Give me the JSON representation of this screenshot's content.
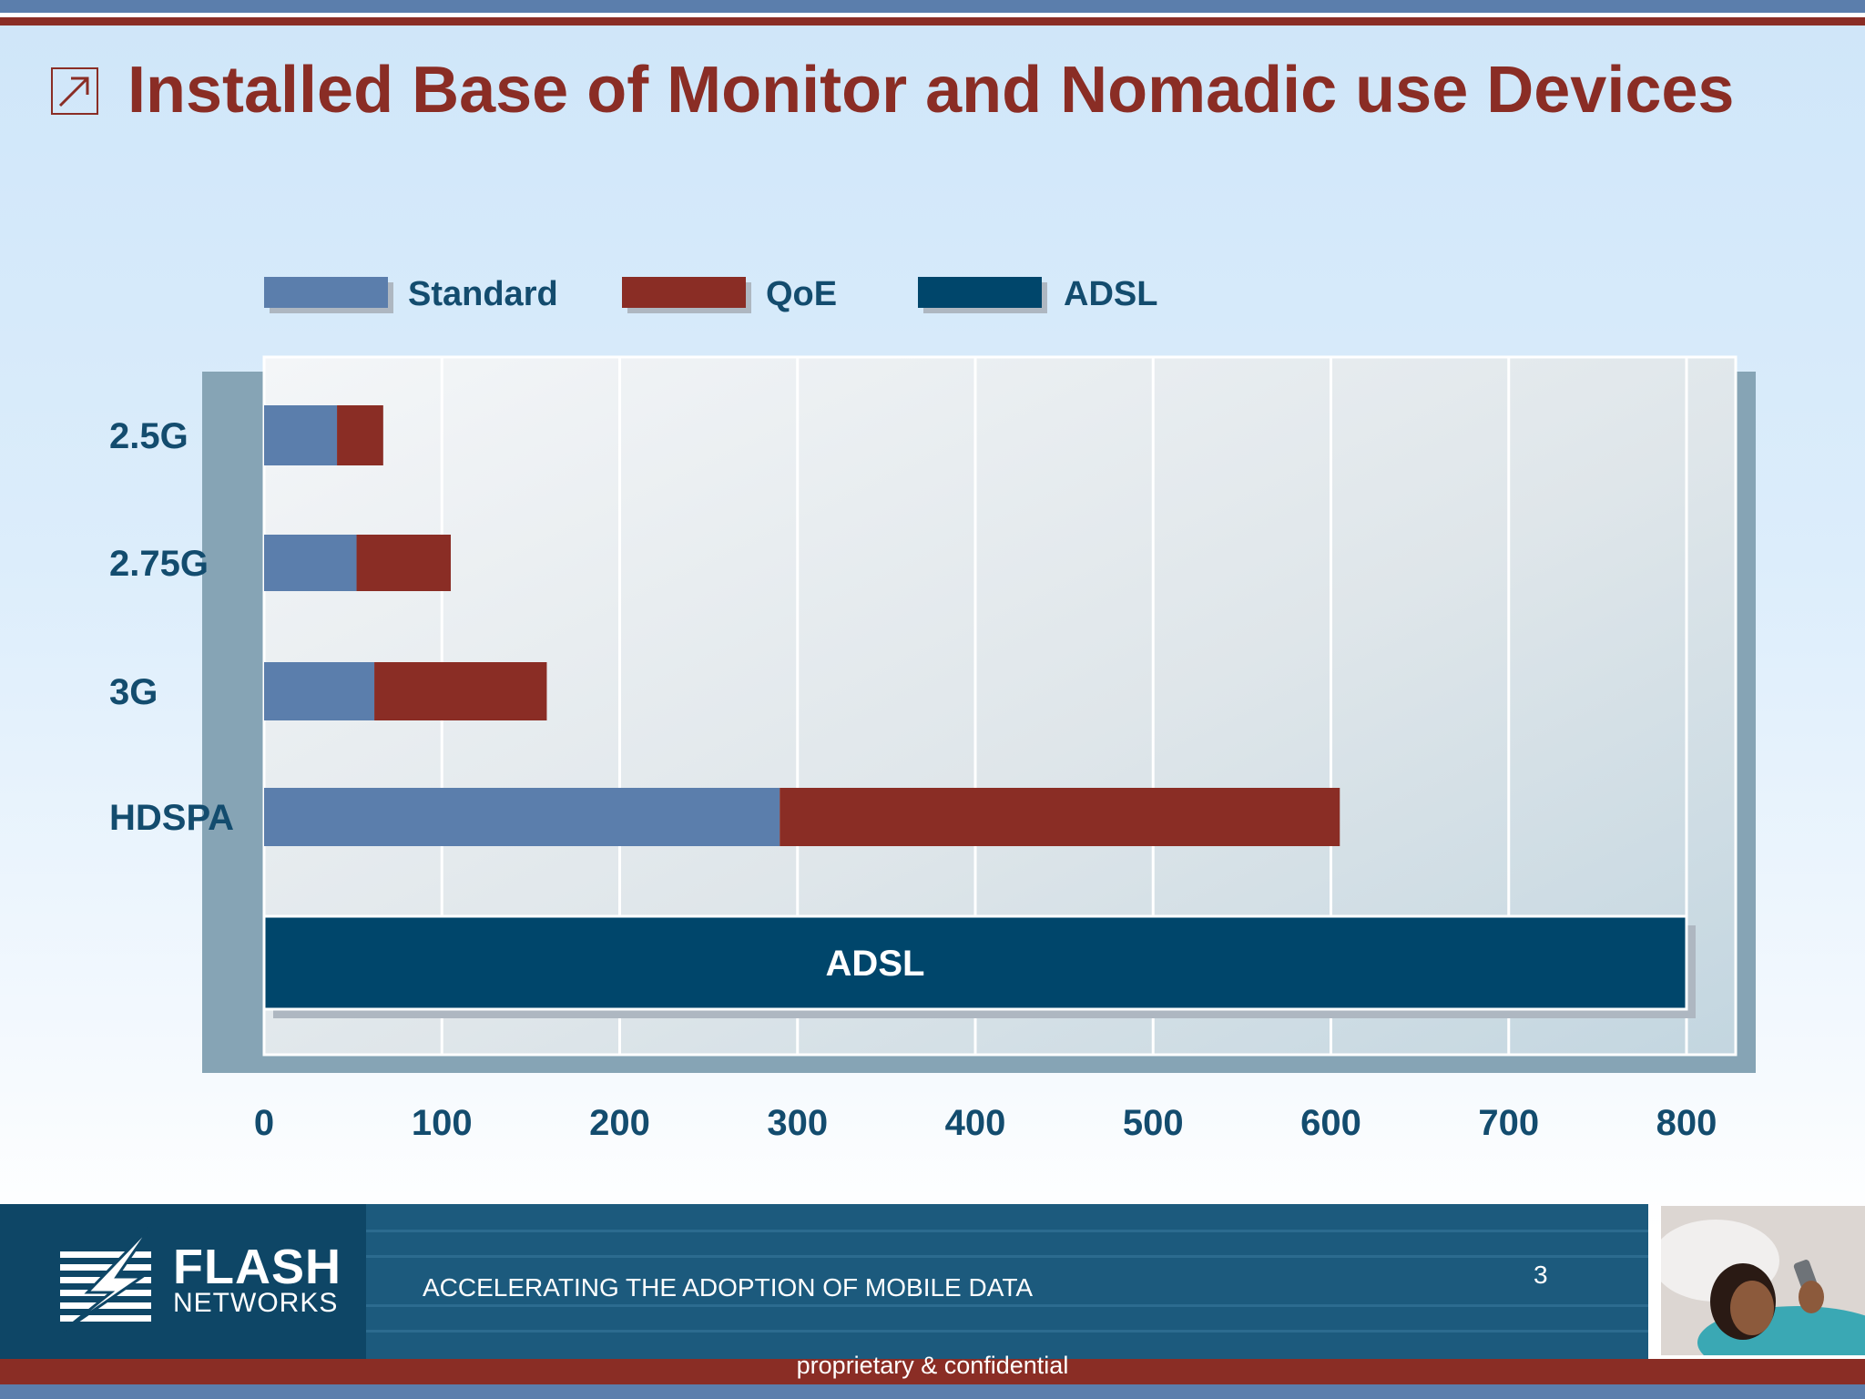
{
  "slide": {
    "title": "Installed Base of Monitor and Nomadic use Devices"
  },
  "chart_data": {
    "type": "bar",
    "orientation": "horizontal",
    "stacked": true,
    "categories": [
      "2.5G",
      "2.75G",
      "3G",
      "HDSPA",
      ""
    ],
    "series": [
      {
        "name": "Standard",
        "color": "#5b7eac",
        "values": [
          41,
          52,
          62,
          290,
          0
        ]
      },
      {
        "name": "QoE",
        "color": "#8a2d25",
        "values": [
          26,
          53,
          97,
          315,
          0
        ]
      },
      {
        "name": "ADSL",
        "color": "#00466b",
        "values": [
          0,
          0,
          0,
          0,
          800
        ]
      }
    ],
    "bar_labels": {
      "ADSL": "ADSL"
    },
    "xlim": [
      0,
      800
    ],
    "xticks": [
      "0",
      "100",
      "200",
      "300",
      "400",
      "500",
      "600",
      "700",
      "800"
    ],
    "grid": true,
    "legend": "top"
  },
  "legend": [
    {
      "label": "Standard",
      "color": "#5b7eac"
    },
    {
      "label": "QoE",
      "color": "#8a2d25"
    },
    {
      "label": "ADSL",
      "color": "#00466b"
    }
  ],
  "footer": {
    "brand": "FLASH",
    "brand_sub": "NETWORKS",
    "tagline": "ACCELERATING THE ADOPTION OF MOBILE DATA",
    "page_number": "3",
    "confidential": "proprietary & confidential"
  }
}
